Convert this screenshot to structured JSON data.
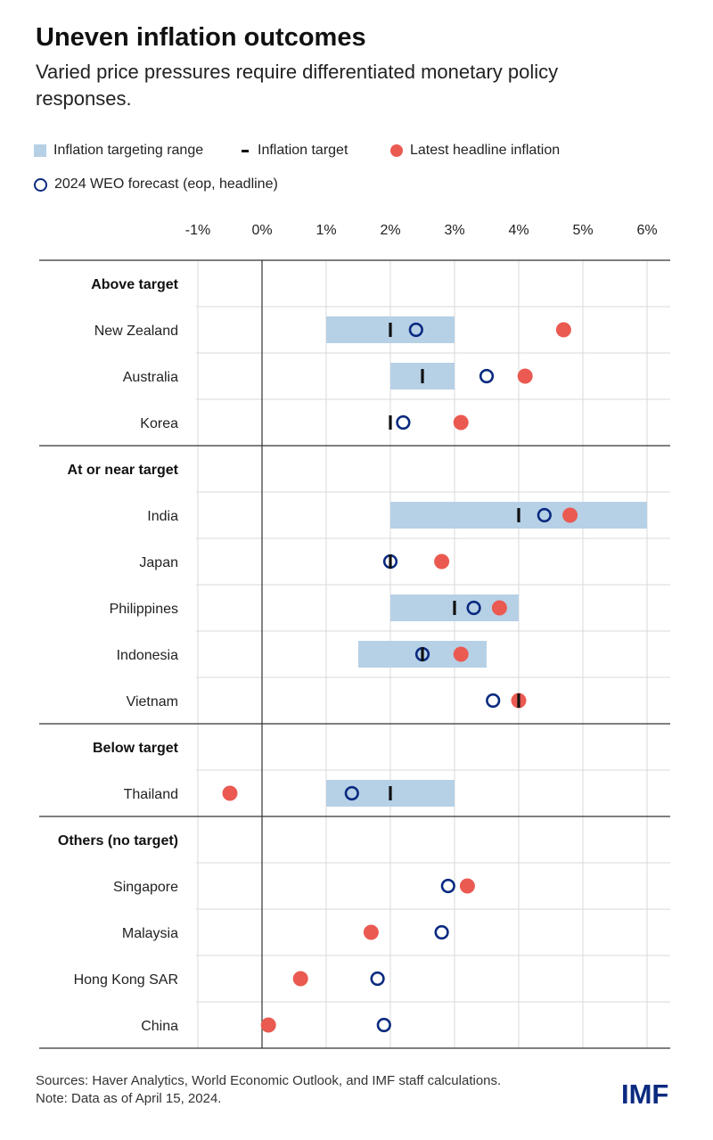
{
  "header": {
    "title": "Uneven inflation outcomes",
    "subtitle": "Varied price pressures require differentiated monetary policy responses."
  },
  "legend": {
    "range": "Inflation targeting range",
    "target": "Inflation target",
    "latest": "Latest headline inflation",
    "forecast": "2024 WEO forecast (eop, headline)"
  },
  "footer": {
    "sources": "Sources: Haver Analytics, World Economic Outlook, and IMF staff calculations.",
    "note": "Note: Data as of April 15, 2024."
  },
  "logo": "IMF",
  "colors": {
    "range": "#b6d0e6",
    "target": "#111111",
    "latest": "#ea5a51",
    "forecast": "#0a2a80",
    "grid": "#d9d9d9",
    "zero_line": "#333333"
  },
  "chart_data": {
    "type": "dot-range",
    "xlim": [
      -1,
      6
    ],
    "xticks": [
      -1,
      0,
      1,
      2,
      3,
      4,
      5,
      6
    ],
    "xtick_labels": [
      "-1%",
      "0%",
      "1%",
      "2%",
      "3%",
      "4%",
      "5%",
      "6%"
    ],
    "groups": [
      {
        "name": "Above target",
        "rows": [
          {
            "country": "New Zealand",
            "range": [
              1,
              3
            ],
            "target": 2,
            "forecast": 2.4,
            "latest": 4.7
          },
          {
            "country": "Australia",
            "range": [
              2,
              3
            ],
            "target": 2.5,
            "forecast": 3.5,
            "latest": 4.1
          },
          {
            "country": "Korea",
            "range": null,
            "target": 2,
            "forecast": 2.2,
            "latest": 3.1
          }
        ]
      },
      {
        "name": "At or near target",
        "rows": [
          {
            "country": "India",
            "range": [
              2,
              6
            ],
            "target": 4,
            "forecast": 4.4,
            "latest": 4.8
          },
          {
            "country": "Japan",
            "range": null,
            "target": 2,
            "forecast": 2.0,
            "latest": 2.8
          },
          {
            "country": "Philippines",
            "range": [
              2,
              4
            ],
            "target": 3,
            "forecast": 3.3,
            "latest": 3.7
          },
          {
            "country": "Indonesia",
            "range": [
              1.5,
              3.5
            ],
            "target": 2.5,
            "forecast": 2.5,
            "latest": 3.1
          },
          {
            "country": "Vietnam",
            "range": null,
            "target": 4,
            "forecast": 3.6,
            "latest": 4.0
          }
        ]
      },
      {
        "name": "Below target",
        "rows": [
          {
            "country": "Thailand",
            "range": [
              1,
              3
            ],
            "target": 2,
            "forecast": 1.4,
            "latest": -0.5
          }
        ]
      },
      {
        "name": "Others (no target)",
        "rows": [
          {
            "country": "Singapore",
            "range": null,
            "target": null,
            "forecast": 2.9,
            "latest": 3.2
          },
          {
            "country": "Malaysia",
            "range": null,
            "target": null,
            "forecast": 2.8,
            "latest": 1.7
          },
          {
            "country": "Hong Kong SAR",
            "range": null,
            "target": null,
            "forecast": 1.8,
            "latest": 0.6
          },
          {
            "country": "China",
            "range": null,
            "target": null,
            "forecast": 1.9,
            "latest": 0.1
          }
        ]
      }
    ]
  }
}
